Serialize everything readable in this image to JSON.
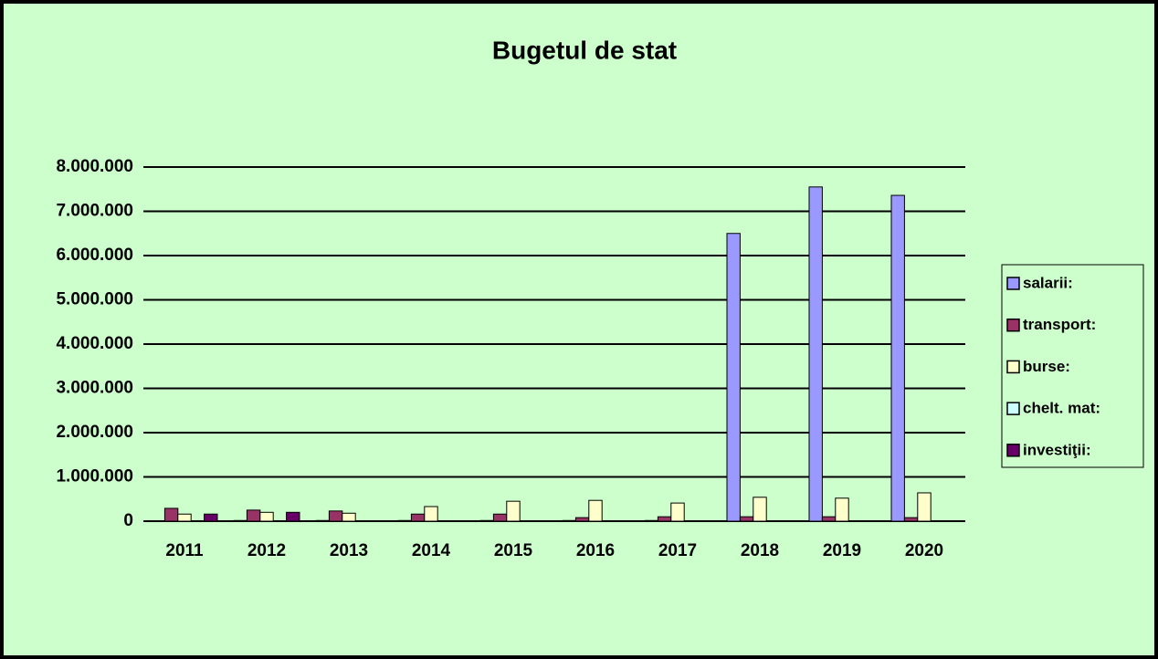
{
  "chart_data": {
    "type": "bar",
    "title": "Bugetul de stat",
    "categories": [
      "2011",
      "2012",
      "2013",
      "2014",
      "2015",
      "2016",
      "2017",
      "2018",
      "2019",
      "2020"
    ],
    "series": [
      {
        "name": "salarii:",
        "color": "#9999ff",
        "values": [
          10000,
          15000,
          15000,
          15000,
          15000,
          15000,
          15000,
          6500000,
          7550000,
          7360000
        ]
      },
      {
        "name": "transport:",
        "color": "#993366",
        "values": [
          290000,
          250000,
          230000,
          160000,
          160000,
          80000,
          100000,
          100000,
          100000,
          80000
        ]
      },
      {
        "name": "burse:",
        "color": "#ffffcc",
        "values": [
          160000,
          200000,
          180000,
          330000,
          450000,
          470000,
          410000,
          540000,
          520000,
          640000
        ]
      },
      {
        "name": "chelt. mat:",
        "color": "#ccffff",
        "values": [
          0,
          0,
          0,
          0,
          0,
          0,
          0,
          0,
          0,
          0
        ]
      },
      {
        "name": "investiţii:",
        "color": "#660066",
        "values": [
          160000,
          200000,
          0,
          0,
          0,
          0,
          0,
          0,
          0,
          0
        ]
      }
    ],
    "ylim": [
      0,
      8000000
    ],
    "yticks": [
      0,
      {
        "value": 1000000,
        "label": "1.000.000"
      },
      {
        "value": 2000000,
        "label": "2.000.000"
      },
      {
        "value": 3000000,
        "label": "3.000.000"
      },
      {
        "value": 4000000,
        "label": "4.000.000"
      },
      {
        "value": 5000000,
        "label": "5.000.000"
      },
      {
        "value": 6000000,
        "label": "6.000.000"
      },
      {
        "value": 7000000,
        "label": "7.000.000"
      },
      {
        "value": 8000000,
        "label": "8.000.000"
      }
    ],
    "grid": true,
    "legend": "right"
  }
}
